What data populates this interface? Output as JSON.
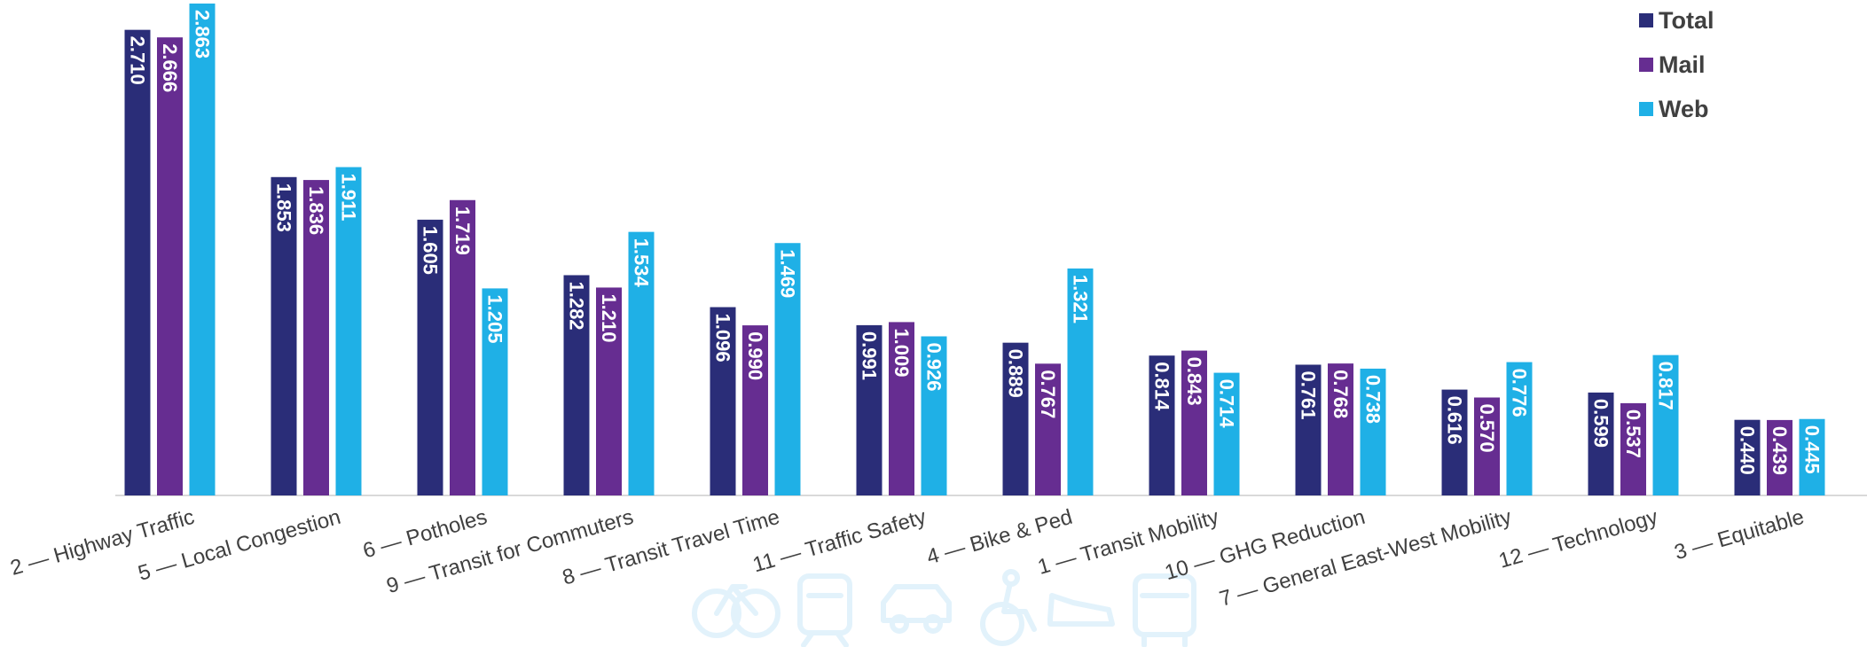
{
  "chart_data": {
    "type": "bar",
    "title": "",
    "xlabel": "",
    "ylabel": "",
    "ylim": [
      0,
      2.9
    ],
    "grid": false,
    "legend_position": "top-right",
    "categories": [
      "2 — Highway Traffic",
      "5 — Local Congestion",
      "6 — Potholes",
      "9 — Transit for Commuters",
      "8 — Transit Travel Time",
      "11 — Traffic Safety",
      "4 — Bike & Ped",
      "1 — Transit Mobility",
      "10 — GHG Reduction",
      "7 — General East-West Mobility",
      "12 — Technology",
      "3 — Equitable"
    ],
    "series": [
      {
        "name": "Total",
        "color": "#2a2d78",
        "values": [
          2.71,
          1.853,
          1.605,
          1.282,
          1.096,
          0.991,
          0.889,
          0.814,
          0.761,
          0.616,
          0.599,
          0.44
        ],
        "labels": [
          "2.710",
          "1.853",
          "1.605",
          "1.282",
          "1.096",
          "0.991",
          "0.889",
          "0.814",
          "0.761",
          "0.616",
          "0.599",
          "0.440"
        ]
      },
      {
        "name": "Mail",
        "color": "#662d91",
        "values": [
          2.666,
          1.836,
          1.719,
          1.21,
          0.99,
          1.009,
          0.767,
          0.843,
          0.768,
          0.57,
          0.537,
          0.439
        ],
        "labels": [
          "2.666",
          "1.836",
          "1.719",
          "1.210",
          "0.990",
          "1.009",
          "0.767",
          "0.843",
          "0.768",
          "0.570",
          "0.537",
          "0.439"
        ]
      },
      {
        "name": "Web",
        "color": "#1fb0e6",
        "values": [
          2.863,
          1.911,
          1.205,
          1.534,
          1.469,
          0.926,
          1.321,
          0.714,
          0.738,
          0.776,
          0.817,
          0.445
        ],
        "labels": [
          "2.863",
          "1.911",
          "1.205",
          "1.534",
          "1.469",
          "0.926",
          "1.321",
          "0.714",
          "0.738",
          "0.776",
          "0.817",
          "0.445"
        ]
      }
    ],
    "watermark_icons": [
      "bicycle-icon",
      "tram-icon",
      "car-icon",
      "wheelchair-icon",
      "sneaker-icon",
      "bus-icon"
    ]
  }
}
